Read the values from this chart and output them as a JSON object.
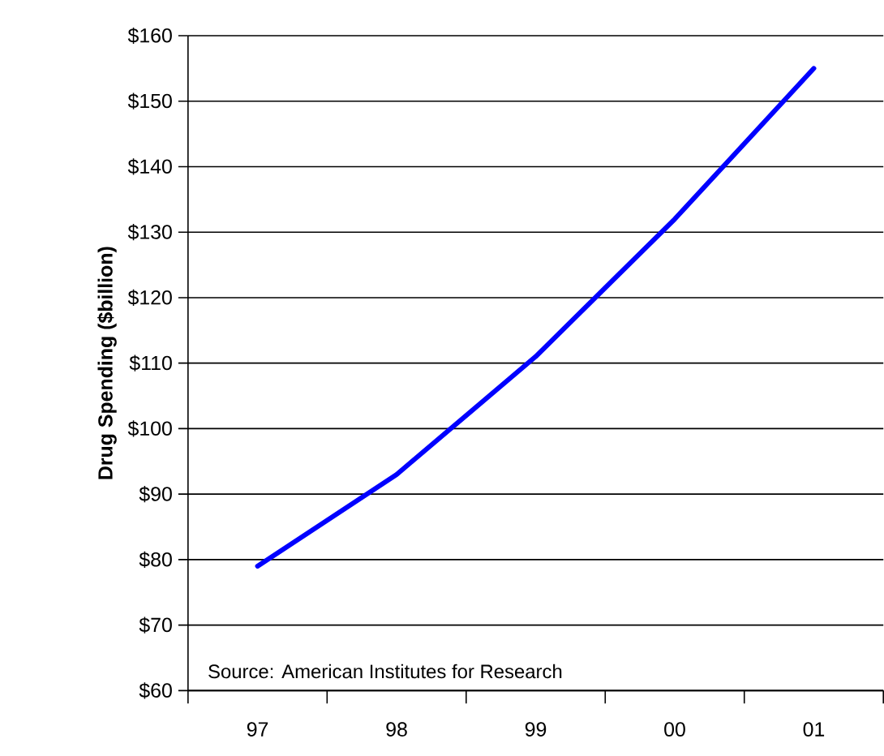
{
  "chart_data": {
    "type": "line",
    "ylabel": "Drug Spending ($billion)",
    "categories": [
      "97",
      "98",
      "99",
      "00",
      "01"
    ],
    "series": [
      {
        "color": "#0000ff",
        "values": [
          79,
          93,
          111,
          132,
          155
        ]
      }
    ],
    "ylim": [
      60,
      160
    ],
    "yticks": [
      {
        "value": 60,
        "label": "$60"
      },
      {
        "value": 70,
        "label": "$70"
      },
      {
        "value": 80,
        "label": "$80"
      },
      {
        "value": 90,
        "label": "$90"
      },
      {
        "value": 100,
        "label": "$100"
      },
      {
        "value": 110,
        "label": "$110"
      },
      {
        "value": 120,
        "label": "$120"
      },
      {
        "value": 130,
        "label": "$130"
      },
      {
        "value": 140,
        "label": "$140"
      },
      {
        "value": 150,
        "label": "$150"
      },
      {
        "value": 160,
        "label": "$160"
      }
    ],
    "grid": "y",
    "marker": "none",
    "line_style": "solid",
    "annotations": [
      "Source:  American Institutes for Research"
    ]
  }
}
